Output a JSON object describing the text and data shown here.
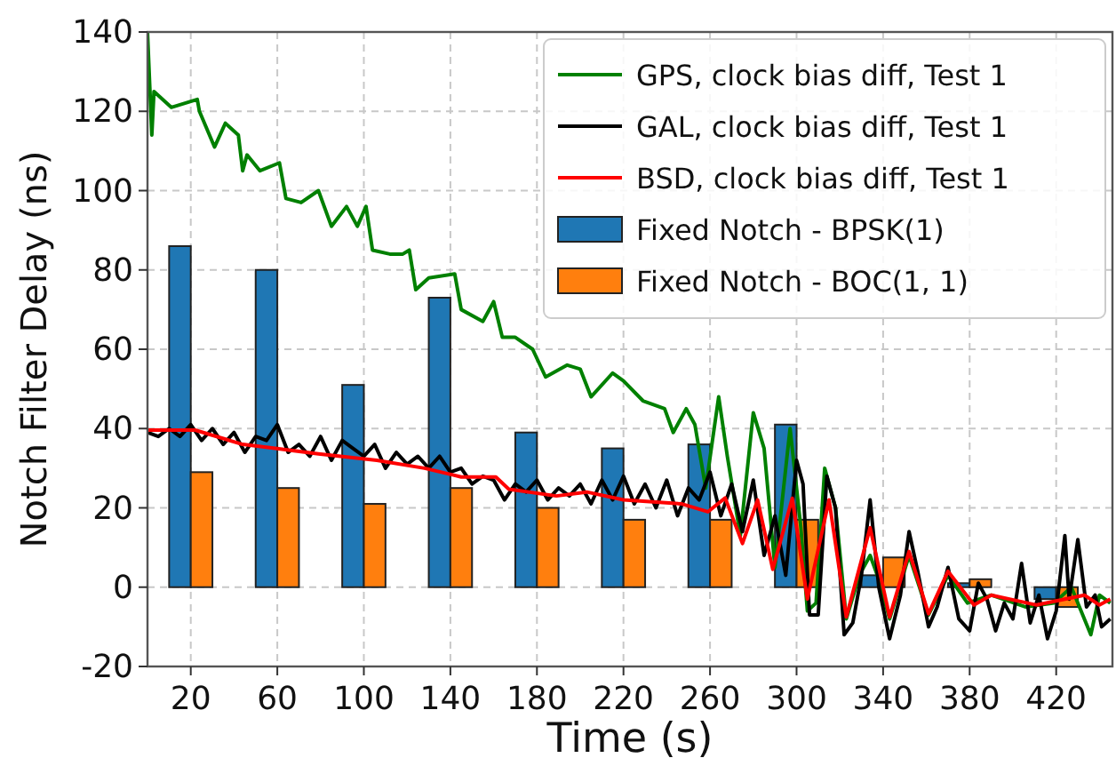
{
  "chart_data": {
    "type": "line",
    "xlabel": "Time (s)",
    "ylabel": "Notch Filter Delay (ns)",
    "xlim": [
      0,
      446
    ],
    "ylim": [
      -20,
      140
    ],
    "xticks": [
      20,
      60,
      100,
      140,
      180,
      220,
      260,
      300,
      340,
      380,
      420
    ],
    "yticks": [
      -20,
      0,
      20,
      40,
      60,
      80,
      100,
      120,
      140
    ],
    "grid": true,
    "legend": "top right",
    "line_style": "solid",
    "marker": "none",
    "series": [
      {
        "name": "GPS, clock bias diff, Test 1",
        "color": "#008000",
        "x": [
          0,
          2,
          3,
          11,
          23,
          24,
          31,
          36,
          42,
          44,
          46,
          52,
          61,
          64,
          71,
          79,
          85,
          92,
          97,
          101,
          104,
          112,
          118,
          121,
          124,
          130,
          142,
          145,
          155,
          160,
          164,
          170,
          178,
          184,
          194,
          200,
          205,
          215,
          220,
          229,
          239,
          243,
          249,
          253,
          258,
          264,
          268,
          274,
          280,
          285,
          290,
          297,
          302,
          305,
          309,
          313,
          318,
          323,
          329,
          334,
          338,
          343,
          352,
          361,
          370,
          379,
          390,
          406,
          419,
          427,
          436,
          440,
          445
        ],
        "values": [
          140,
          114,
          125,
          121,
          123,
          120,
          111,
          117,
          114,
          105,
          109,
          105,
          107,
          98,
          97,
          100,
          91,
          96,
          91,
          96,
          85,
          84,
          84,
          85,
          75,
          78,
          79,
          70,
          67,
          72,
          63,
          63,
          60,
          53,
          56,
          55,
          48,
          54,
          52,
          47,
          45,
          39,
          45,
          41,
          25,
          48,
          33,
          13,
          44,
          35,
          5,
          40,
          15,
          -6,
          -4,
          30,
          20,
          -8,
          3,
          8,
          2,
          -8,
          8,
          -7,
          3,
          -4,
          -2,
          -5,
          -4,
          0,
          -12,
          -2,
          -4
        ]
      },
      {
        "name": "GAL, clock bias diff, Test 1",
        "color": "#000000",
        "x": [
          0,
          5,
          10,
          15,
          20,
          25,
          30,
          35,
          40,
          45,
          50,
          55,
          60,
          65,
          70,
          75,
          80,
          85,
          90,
          95,
          100,
          105,
          110,
          115,
          120,
          125,
          130,
          135,
          140,
          145,
          150,
          155,
          160,
          165,
          170,
          175,
          180,
          185,
          190,
          195,
          200,
          205,
          210,
          215,
          220,
          225,
          230,
          235,
          240,
          245,
          250,
          255,
          260,
          265,
          270,
          275,
          280,
          285,
          290,
          295,
          300,
          303,
          306,
          310,
          314,
          318,
          322,
          326,
          330,
          334,
          338,
          343,
          348,
          352,
          356,
          361,
          365,
          370,
          375,
          380,
          384,
          388,
          392,
          396,
          400,
          404,
          408,
          412,
          416,
          420,
          424,
          426,
          430,
          434,
          438,
          441,
          445
        ],
        "values": [
          39,
          38,
          40,
          38,
          41,
          37,
          40,
          36,
          39,
          34,
          38,
          37,
          41,
          34,
          36,
          33,
          38,
          32,
          37,
          35,
          33,
          36,
          30,
          34,
          31,
          33,
          30,
          33,
          29,
          30,
          26,
          28,
          27,
          22,
          26,
          24,
          27,
          22,
          25,
          23,
          26,
          21,
          27,
          22,
          28,
          21,
          26,
          20,
          27,
          18,
          25,
          22,
          29,
          18,
          26,
          14,
          27,
          8,
          18,
          3,
          32,
          26,
          -7,
          -7,
          28,
          20,
          -12,
          -9,
          3,
          22,
          0,
          -13,
          -2,
          14,
          4,
          -10,
          -5,
          5,
          -8,
          -11,
          1,
          -3,
          -11,
          -4,
          -8,
          6,
          -9,
          -2,
          -13,
          -6,
          13,
          -3,
          12,
          -5,
          -2,
          -10,
          -8
        ]
      },
      {
        "name": "BSD, clock bias diff, Test 1",
        "color": "#ff0000",
        "x": [
          0,
          22,
          44,
          59,
          79,
          106,
          128,
          145,
          161,
          167,
          189,
          203,
          220,
          247,
          259,
          267,
          275,
          282,
          289,
          298,
          305,
          315,
          323,
          334,
          343,
          352,
          361,
          370,
          382,
          390,
          411,
          433,
          440,
          445
        ],
        "values": [
          39.6,
          39.6,
          36,
          35,
          33.6,
          32,
          30,
          27.8,
          27.8,
          24.7,
          23,
          24,
          22,
          21,
          19,
          22.5,
          11,
          22,
          4.5,
          22.4,
          -3,
          22,
          -7.5,
          15,
          -7.5,
          9,
          -6.7,
          4,
          -4.5,
          -2,
          -4.5,
          -2,
          -4.5,
          -3
        ]
      },
      {
        "name": "Fixed Notch - BPSK(1)",
        "type": "bar",
        "color": "#1f77b4",
        "x": [
          15,
          55,
          95,
          135,
          175,
          215,
          255,
          295,
          335,
          375,
          415
        ],
        "values": [
          86,
          80,
          51,
          73,
          39,
          35,
          36,
          41,
          3,
          1,
          -3
        ]
      },
      {
        "name": "Fixed Notch - BOC(1, 1)",
        "type": "bar",
        "color": "#ff7f0e",
        "x": [
          25,
          65,
          105,
          145,
          185,
          225,
          265,
          305,
          345,
          385,
          425
        ],
        "values": [
          29,
          25,
          21,
          25,
          20,
          17,
          17,
          17,
          7.5,
          2,
          -5
        ]
      }
    ]
  }
}
